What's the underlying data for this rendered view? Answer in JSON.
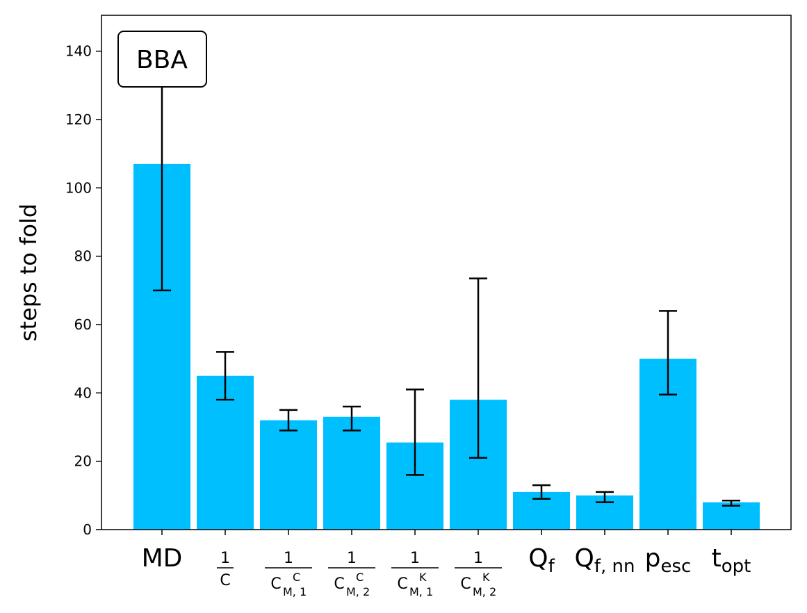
{
  "chart_data": {
    "type": "bar",
    "panel_label": "BBA",
    "ylabel": "steps to fold",
    "xlabel": "",
    "ylim": [
      0,
      150
    ],
    "yticks": [
      0,
      20,
      40,
      60,
      80,
      100,
      120,
      140
    ],
    "bar_color": "#00bfff",
    "categories": [
      {
        "kind": "plain",
        "main": "MD"
      },
      {
        "kind": "frac",
        "num": "1",
        "den": "C",
        "sup": "",
        "sub": ""
      },
      {
        "kind": "frac",
        "num": "1",
        "den": "C",
        "sup": "C",
        "sub": "M, 1"
      },
      {
        "kind": "frac",
        "num": "1",
        "den": "C",
        "sup": "C",
        "sub": "M, 2"
      },
      {
        "kind": "frac",
        "num": "1",
        "den": "C",
        "sup": "K",
        "sub": "M, 1"
      },
      {
        "kind": "frac",
        "num": "1",
        "den": "C",
        "sup": "K",
        "sub": "M, 2"
      },
      {
        "kind": "sub",
        "main": "Q",
        "sub": "f"
      },
      {
        "kind": "sub",
        "main": "Q",
        "sub": "f, nn"
      },
      {
        "kind": "sub",
        "main": "p",
        "sub": "esc"
      },
      {
        "kind": "sub",
        "main": "t",
        "sub": "opt"
      }
    ],
    "values": [
      107,
      45,
      32,
      33,
      25.5,
      38,
      11,
      10,
      50,
      8
    ],
    "err_low": [
      70,
      38,
      29,
      29,
      16,
      21,
      9,
      8,
      39.5,
      7
    ],
    "err_high": [
      131,
      52,
      35,
      36,
      41,
      73.5,
      13,
      11,
      64,
      8.5
    ]
  }
}
